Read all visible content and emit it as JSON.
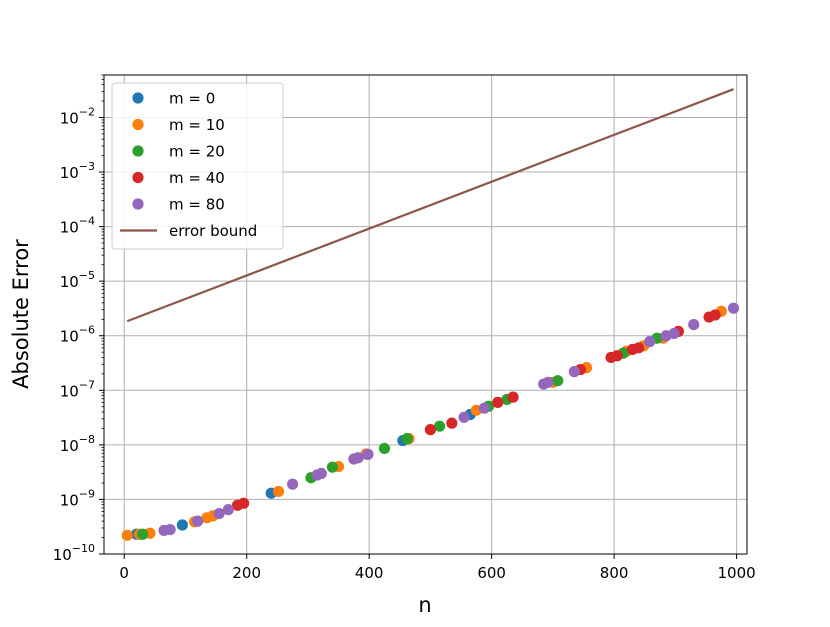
{
  "chart_data": {
    "type": "scatter",
    "xlabel": "n",
    "ylabel": "Absolute Error",
    "xlim": [
      -33,
      1017
    ],
    "ylim": [
      1e-10,
      0.06
    ],
    "yscale": "log",
    "grid": true,
    "legend_placement": "top-left",
    "x_ticks": [
      {
        "value": 0,
        "label": "0"
      },
      {
        "value": 200,
        "label": "200"
      },
      {
        "value": 400,
        "label": "400"
      },
      {
        "value": 600,
        "label": "600"
      },
      {
        "value": 800,
        "label": "800"
      },
      {
        "value": 1000,
        "label": "1000"
      }
    ],
    "y_ticks": [
      {
        "value": 1e-10,
        "base": "10",
        "exp": "−10"
      },
      {
        "value": 1e-09,
        "base": "10",
        "exp": "−9"
      },
      {
        "value": 1e-08,
        "base": "10",
        "exp": "−8"
      },
      {
        "value": 1e-07,
        "base": "10",
        "exp": "−7"
      },
      {
        "value": 1e-06,
        "base": "10",
        "exp": "−6"
      },
      {
        "value": 1e-05,
        "base": "10",
        "exp": "−5"
      },
      {
        "value": 0.0001,
        "base": "10",
        "exp": "−4"
      },
      {
        "value": 0.001,
        "base": "10",
        "exp": "−3"
      },
      {
        "value": 0.01,
        "base": "10",
        "exp": "−2"
      }
    ],
    "series": [
      {
        "name": "m = 0",
        "kind": "scatter",
        "color": "#1f77b4",
        "points": [
          [
            20,
            2.3e-10
          ],
          [
            95,
            3.4e-10
          ],
          [
            240,
            1.3e-09
          ],
          [
            455,
            1.2e-08
          ],
          [
            565,
            3.6e-08
          ]
        ]
      },
      {
        "name": "m = 10",
        "kind": "scatter",
        "color": "#ff7f0e",
        "points": [
          [
            5,
            2.2e-10
          ],
          [
            25,
            2.3e-10
          ],
          [
            42,
            2.4e-10
          ],
          [
            115,
            3.9e-10
          ],
          [
            135,
            4.6e-10
          ],
          [
            145,
            5e-10
          ],
          [
            252,
            1.4e-09
          ],
          [
            350,
            4e-09
          ],
          [
            395,
            6.8e-09
          ],
          [
            465,
            1.3e-08
          ],
          [
            575,
            4.3e-08
          ],
          [
            700,
            1.4e-07
          ],
          [
            755,
            2.6e-07
          ],
          [
            820,
            5.2e-07
          ],
          [
            848,
            6.5e-07
          ],
          [
            880,
            9e-07
          ],
          [
            975,
            2.8e-06
          ]
        ]
      },
      {
        "name": "m = 20",
        "kind": "scatter",
        "color": "#2ca02c",
        "points": [
          [
            30,
            2.3e-10
          ],
          [
            305,
            2.5e-09
          ],
          [
            340,
            3.9e-09
          ],
          [
            425,
            8.6e-09
          ],
          [
            462,
            1.3e-08
          ],
          [
            515,
            2.2e-08
          ],
          [
            595,
            5.1e-08
          ],
          [
            625,
            6.8e-08
          ],
          [
            708,
            1.5e-07
          ],
          [
            815,
            4.8e-07
          ],
          [
            870,
            9e-07
          ]
        ]
      },
      {
        "name": "m = 40",
        "kind": "scatter",
        "color": "#d62728",
        "points": [
          [
            185,
            7.8e-10
          ],
          [
            195,
            8.5e-10
          ],
          [
            500,
            1.9e-08
          ],
          [
            535,
            2.5e-08
          ],
          [
            610,
            6e-08
          ],
          [
            635,
            7.5e-08
          ],
          [
            745,
            2.4e-07
          ],
          [
            795,
            4e-07
          ],
          [
            805,
            4.3e-07
          ],
          [
            830,
            5.6e-07
          ],
          [
            840,
            6e-07
          ],
          [
            905,
            1.2e-06
          ],
          [
            955,
            2.2e-06
          ],
          [
            965,
            2.4e-06
          ]
        ]
      },
      {
        "name": "m = 80",
        "kind": "scatter",
        "color": "#9467bd",
        "points": [
          [
            65,
            2.7e-10
          ],
          [
            75,
            2.8e-10
          ],
          [
            120,
            4e-10
          ],
          [
            155,
            5.5e-10
          ],
          [
            170,
            6.5e-10
          ],
          [
            275,
            1.9e-09
          ],
          [
            315,
            2.8e-09
          ],
          [
            322,
            3e-09
          ],
          [
            375,
            5.5e-09
          ],
          [
            382,
            5.8e-09
          ],
          [
            398,
            6.7e-09
          ],
          [
            555,
            3.2e-08
          ],
          [
            588,
            4.7e-08
          ],
          [
            685,
            1.3e-07
          ],
          [
            692,
            1.4e-07
          ],
          [
            735,
            2.2e-07
          ],
          [
            858,
            7.8e-07
          ],
          [
            885,
            1e-06
          ],
          [
            898,
            1.1e-06
          ],
          [
            930,
            1.6e-06
          ],
          [
            995,
            3.2e-06
          ]
        ]
      },
      {
        "name": "error bound",
        "kind": "line",
        "color": "#8c564b",
        "points": [
          [
            5,
            1.85e-06
          ],
          [
            995,
            0.033
          ]
        ]
      }
    ]
  }
}
